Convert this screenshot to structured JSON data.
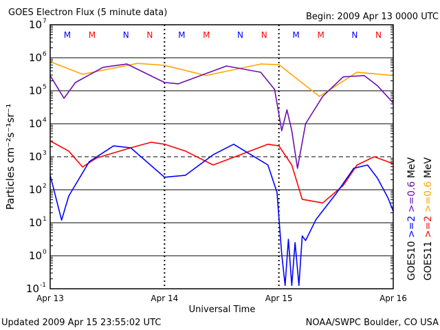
{
  "chart_data": {
    "type": "line",
    "title": "GOES Electron Flux (5 minute data)",
    "begin": "Begin: 2009 Apr 13 0000 UTC",
    "xlabel": "Universal Time",
    "ylabel": "Particles cm⁻²s⁻¹sr⁻¹",
    "y_scale": "log",
    "ylim_log10": [
      -1,
      7
    ],
    "xlim_hours": [
      0,
      72
    ],
    "x_ticks": [
      {
        "hours": 0,
        "label": "Apr 13"
      },
      {
        "hours": 24,
        "label": "Apr 14"
      },
      {
        "hours": 48,
        "label": "Apr 15"
      },
      {
        "hours": 72,
        "label": "Apr 16"
      }
    ],
    "y_ticks": [
      {
        "exp": 7,
        "base": "10",
        "sup": "7"
      },
      {
        "exp": 6,
        "base": "10",
        "sup": "6"
      },
      {
        "exp": 5,
        "base": "10",
        "sup": "5"
      },
      {
        "exp": 4,
        "base": "10",
        "sup": "4"
      },
      {
        "exp": 3,
        "base": "10",
        "sup": "3"
      },
      {
        "exp": 2,
        "base": "10",
        "sup": "2"
      },
      {
        "exp": 1,
        "base": "10",
        "sup": "1"
      },
      {
        "exp": 0,
        "base": "10",
        "sup": "0"
      },
      {
        "exp": -1,
        "base": "10",
        "sup": "-1"
      }
    ],
    "dashed_threshold_log10": 3,
    "markers": [
      {
        "hours": 3.6,
        "label": "M",
        "color": "#0000ff"
      },
      {
        "hours": 8.8,
        "label": "M",
        "color": "#ff0000"
      },
      {
        "hours": 15.9,
        "label": "N",
        "color": "#0000ff"
      },
      {
        "hours": 20.9,
        "label": "N",
        "color": "#ff0000"
      },
      {
        "hours": 27.6,
        "label": "M",
        "color": "#0000ff"
      },
      {
        "hours": 32.8,
        "label": "M",
        "color": "#ff0000"
      },
      {
        "hours": 39.9,
        "label": "N",
        "color": "#0000ff"
      },
      {
        "hours": 44.9,
        "label": "N",
        "color": "#ff0000"
      },
      {
        "hours": 51.6,
        "label": "M",
        "color": "#0000ff"
      },
      {
        "hours": 56.8,
        "label": "M",
        "color": "#ff0000"
      },
      {
        "hours": 63.9,
        "label": "N",
        "color": "#0000ff"
      },
      {
        "hours": 68.9,
        "label": "N",
        "color": "#ff0000"
      }
    ],
    "series": [
      {
        "name": "GOES11 >=0.6 MeV",
        "color": "#ffa500",
        "hours": [
          0,
          6.8,
          18.3,
          24,
          32.7,
          44.2,
          48,
          56.5,
          64.4,
          72
        ],
        "log10_flux": [
          5.88,
          5.5,
          5.83,
          5.77,
          5.46,
          5.81,
          5.79,
          4.83,
          5.56,
          5.46
        ]
      },
      {
        "name": "GOES10 >=0.6 MeV",
        "color": "#6a0dad",
        "hours": [
          0,
          2.9,
          5.3,
          11.1,
          16.1,
          24,
          26.9,
          37,
          44.2,
          47.1,
          48.6,
          49.7,
          50.7,
          51.9,
          53.6,
          57.2,
          61.5,
          65.9,
          68.7,
          72
        ],
        "log10_flux": [
          5.46,
          4.77,
          5.25,
          5.71,
          5.81,
          5.25,
          5.21,
          5.75,
          5.56,
          5.04,
          3.79,
          4.42,
          3.79,
          2.65,
          4.0,
          4.83,
          5.42,
          5.46,
          5.15,
          4.63
        ]
      },
      {
        "name": "GOES11 >=2 MeV",
        "color": "#ff0000",
        "hours": [
          0,
          3.9,
          6.8,
          9.7,
          16.9,
          21.2,
          24,
          28.4,
          34.2,
          39.9,
          45.7,
          48,
          50.7,
          52.9,
          57.2,
          61.5,
          64.4,
          68,
          72
        ],
        "log10_flux": [
          3.48,
          3.17,
          2.69,
          2.96,
          3.27,
          3.44,
          3.38,
          3.17,
          2.75,
          3.06,
          3.38,
          3.33,
          2.75,
          1.71,
          1.6,
          2.13,
          2.75,
          3.0,
          2.79
        ]
      },
      {
        "name": "GOES10 >=2 MeV",
        "color": "#0000ff",
        "hours": [
          0,
          2.4,
          3.9,
          8.2,
          13.3,
          16.9,
          24,
          28.4,
          34.2,
          38.5,
          45.7,
          47.6,
          48.6,
          49.3,
          50,
          50.7,
          51.4,
          52.2,
          52.9,
          53.6,
          55.8,
          60.1,
          63.7,
          66.6,
          68.7,
          70.9,
          72
        ],
        "log10_flux": [
          2.44,
          1.08,
          1.81,
          2.85,
          3.33,
          3.27,
          2.38,
          2.44,
          3.06,
          3.38,
          2.75,
          1.92,
          0.04,
          -0.9,
          0.5,
          -0.9,
          0.4,
          -0.9,
          0.6,
          0.46,
          1.1,
          1.9,
          2.65,
          2.75,
          2.35,
          1.75,
          1.35
        ]
      }
    ],
    "legend": {
      "placement": "right",
      "columns": [
        {
          "satellite": "GOES10",
          "items": [
            {
              "text": ">=2",
              "color": "#0000ff"
            },
            {
              "text": ">=0.6",
              "color": "#6a0dad"
            }
          ],
          "unit": "MeV"
        },
        {
          "satellite": "GOES11",
          "items": [
            {
              "text": ">=2",
              "color": "#ff0000"
            },
            {
              "text": ">=0.6",
              "color": "#ffa500"
            }
          ],
          "unit": "MeV"
        }
      ]
    }
  },
  "footer": {
    "updated": "Updated 2009 Apr 15 23:55:02 UTC",
    "credit": "NOAA/SWPC Boulder, CO USA"
  }
}
